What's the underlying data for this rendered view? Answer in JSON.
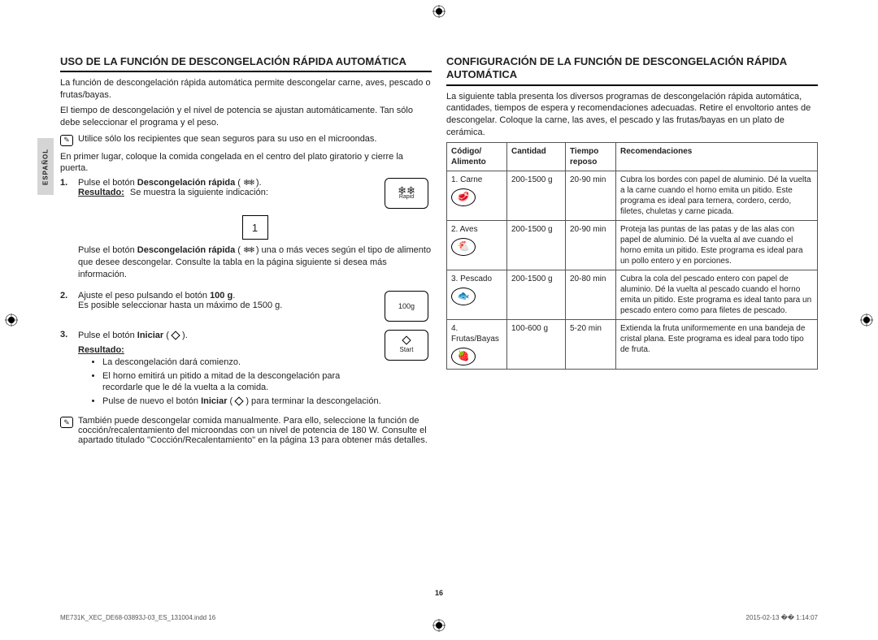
{
  "sideTab": "ESPAÑOL",
  "pageNumber": "16",
  "footer": {
    "left": "ME731K_XEC_DE68-03893J-03_ES_131004.indd   16",
    "right": "2015-02-13   �� 1:14:07"
  },
  "left": {
    "heading": "USO DE LA FUNCIÓN DE DESCONGELACIÓN RÁPIDA AUTOMÁTICA",
    "intro1": "La función de descongelación rápida automática permite descongelar carne, aves, pescado o frutas/bayas.",
    "intro2": "El tiempo de descongelación y el nivel de potencia se ajustan automáticamente. Tan sólo debe seleccionar el programa y el peso.",
    "note1": "Utilice sólo los recipientes que sean seguros para su uso en el microondas.",
    "intro3": "En primer lugar, coloque la comida congelada en el centro del plato giratorio y cierre la puerta.",
    "step1a": "Pulse el botón ",
    "step1b": "Descongelación rápida",
    "step1c": " ( ",
    "step1d": " ).",
    "resultLabel": "Resultado:",
    "step1Result": "  Se muestra la siguiente indicación:",
    "rapidBox": {
      "icon": "❄❄",
      "label": "Rapid"
    },
    "smallBox": "1",
    "step1e": "Pulse el botón ",
    "step1f": "Descongelación rápida",
    "step1g": " ( ",
    "step1h": " ) una o más veces según el tipo de alimento que desee descongelar. Consulte la tabla en la página siguiente si desea más información.",
    "step2a": "Ajuste el peso pulsando el botón ",
    "step2b": "100 g",
    "step2c": ".",
    "step2d": "Es posible seleccionar hasta un máximo de 1500 g.",
    "g100Box": "100g",
    "step3a": "Pulse el botón ",
    "step3b": "Iniciar",
    "step3c": " ( ",
    "step3d": " ).",
    "startBox": "Start",
    "resultHeading": "Resultado:",
    "bullets": [
      "La descongelación dará comienzo.",
      "El horno emitirá un pitido a mitad de la descongelación para recordarle que le dé la vuelta a la comida.",
      "Pulse de nuevo el botón Iniciar ( ◇ ) para terminar la descongelación."
    ],
    "bullet3a": "Pulse de nuevo el botón ",
    "bullet3b": "Iniciar",
    "bullet3c": " ( ",
    "bullet3d": " ) para terminar la descongelación.",
    "note2": "También puede descongelar comida manualmente. Para ello, seleccione la función de cocción/recalentamiento del microondas con un nivel de potencia de 180 W. Consulte el apartado titulado \"Cocción/Recalentamiento\" en la página 13 para obtener más detalles."
  },
  "right": {
    "heading": "CONFIGURACIÓN DE LA FUNCIÓN DE DESCONGELACIÓN RÁPIDA AUTOMÁTICA",
    "intro": "La siguiente tabla presenta los diversos programas de descongelación rápida automática, cantidades, tiempos de espera y recomendaciones adecuadas. Retire el envoltorio antes de descongelar. Coloque la carne, las aves, el pescado y las frutas/bayas en un plato de cerámica.",
    "headers": {
      "code": "Código/ Alimento",
      "qty": "Cantidad",
      "time": "Tiempo reposo",
      "rec": "Recomendaciones"
    },
    "rows": [
      {
        "code": "1. Carne",
        "icon": "🥩",
        "qty": "200-1500 g",
        "time": "20-90 min",
        "rec": "Cubra los bordes con papel de aluminio. Dé la vuelta a la carne cuando el horno emita un pitido.\nEste programa es ideal para ternera, cordero, cerdo, filetes, chuletas y carne picada."
      },
      {
        "code": "2. Aves",
        "icon": "🐔",
        "qty": "200-1500 g",
        "time": "20-90 min",
        "rec": "Proteja las puntas de las patas y de las alas con papel de aluminio. Dé la vuelta al ave cuando el horno emita un pitido. Este programa es ideal para un pollo entero y en porciones."
      },
      {
        "code": "3. Pescado",
        "icon": "🐟",
        "qty": "200-1500 g",
        "time": "20-80 min",
        "rec": "Cubra la cola del pescado entero con papel de aluminio. Dé la vuelta al pescado cuando el horno emita un pitido. Este programa es ideal tanto para un pescado entero como para filetes de pescado."
      },
      {
        "code": "4. Frutas/Bayas",
        "icon": "🍓",
        "qty": "100-600 g",
        "time": "5-20 min",
        "rec": "Extienda la fruta uniformemente en una bandeja de cristal plana.\nEste programa es ideal para todo tipo de fruta."
      }
    ]
  }
}
